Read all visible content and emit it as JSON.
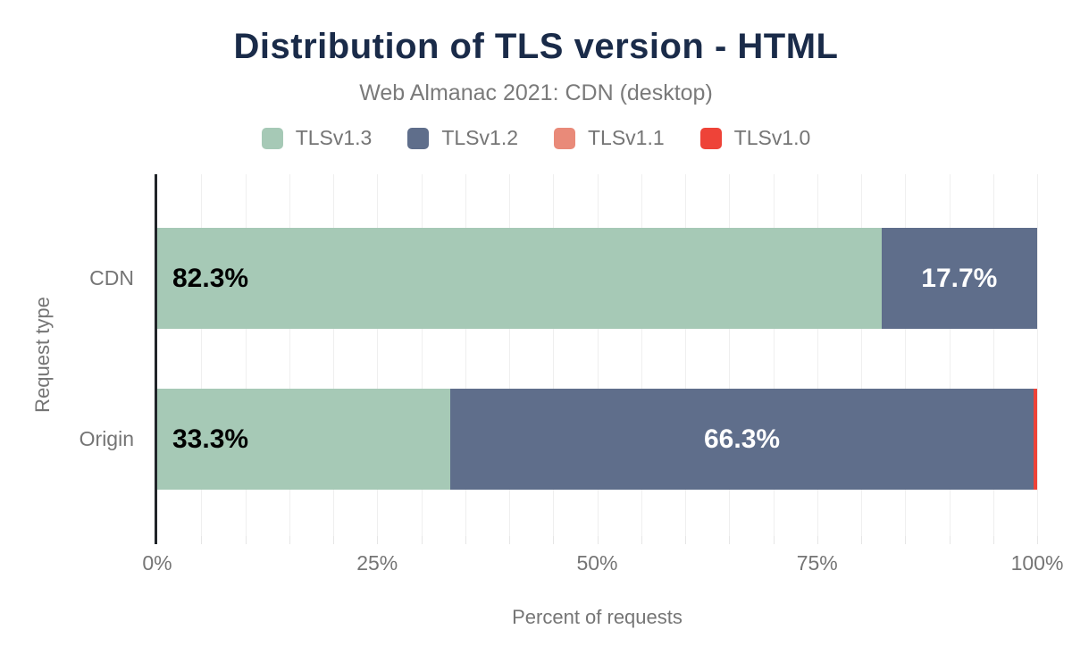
{
  "chart_data": {
    "type": "bar",
    "orientation": "horizontal",
    "stacked": true,
    "title": "Distribution of TLS version - HTML",
    "subtitle": "Web Almanac 2021: CDN (desktop)",
    "categories": [
      "CDN",
      "Origin"
    ],
    "series": [
      {
        "name": "TLSv1.3",
        "color": "#a6c9b6",
        "label_color": "#000000",
        "values": [
          82.3,
          33.3
        ]
      },
      {
        "name": "TLSv1.2",
        "color": "#5f6e8b",
        "label_color": "#ffffff",
        "values": [
          17.7,
          66.3
        ]
      },
      {
        "name": "TLSv1.1",
        "color": "#e98a79",
        "label_color": "#ffffff",
        "values": [
          0,
          0
        ]
      },
      {
        "name": "TLSv1.0",
        "color": "#ee4338",
        "label_color": "#ffffff",
        "values": [
          0,
          0.4
        ]
      }
    ],
    "data_labels": [
      [
        "82.3%",
        "17.7%"
      ],
      [
        "33.3%",
        "66.3%"
      ]
    ],
    "xlabel": "Percent of requests",
    "ylabel": "Request type",
    "xlim": [
      0,
      100
    ],
    "x_ticks": [
      "0%",
      "25%",
      "50%",
      "75%",
      "100%"
    ],
    "grid": "vertical lines every 5%",
    "legend_position": "top",
    "min_label_value": 5
  }
}
